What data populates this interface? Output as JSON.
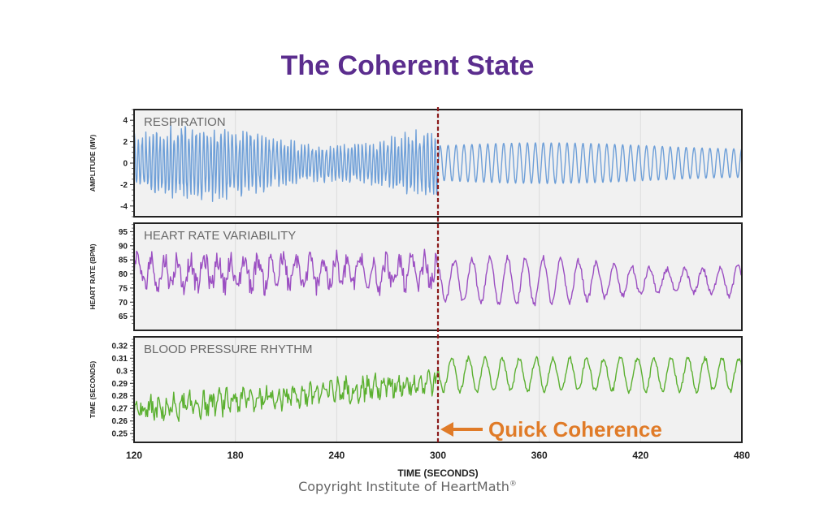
{
  "title": "The Coherent State",
  "copyright": "Copyright Institute of HeartMath",
  "copyright_mark": "®",
  "chart_data": {
    "type": "line",
    "x_label": "TIME (SECONDS)",
    "x_ticks": [
      120,
      180,
      240,
      300,
      360,
      420,
      480
    ],
    "x_range": [
      120,
      480
    ],
    "marker": {
      "x": 300,
      "label": "Quick Coherence",
      "color": "#e07b28"
    },
    "panels": [
      {
        "name": "respiration",
        "label": "RESPIRATION",
        "ylabel": "AMPLITUDE (MV)",
        "ylim": [
          -5,
          5
        ],
        "yticks": [
          -4,
          -2,
          0,
          2,
          4
        ],
        "color": "#6e9fd8",
        "center": 0,
        "amp_before": 3.6,
        "amp_after": 1.9,
        "period_before": 2.2,
        "period_after": 4.7
      },
      {
        "name": "heart-rate-variability",
        "label": "HEART RATE VARIABILITY",
        "ylabel": "HEART RATE (BPM)",
        "ylim": [
          60,
          98
        ],
        "yticks": [
          65,
          70,
          75,
          80,
          85,
          90,
          95
        ],
        "color": "#9b4fc2",
        "center": 77.5,
        "amp_before": 7,
        "amp_after": 8.5,
        "period_before": 9,
        "period_after": 10.5
      },
      {
        "name": "blood-pressure-rhythm",
        "label": "BLOOD PRESSURE RHYTHM",
        "ylabel": "TIME (SECONDS)",
        "ylim": [
          0.243,
          0.327
        ],
        "yticks": [
          0.25,
          0.26,
          0.27,
          0.28,
          0.29,
          0.3,
          0.31,
          0.32
        ],
        "color": "#5bb030",
        "start_level": 0.268,
        "end_level_before": 0.292,
        "center_after": 0.297,
        "amp_before": 0.009,
        "amp_after": 0.013,
        "period_before": 5,
        "period_after": 10
      }
    ]
  }
}
